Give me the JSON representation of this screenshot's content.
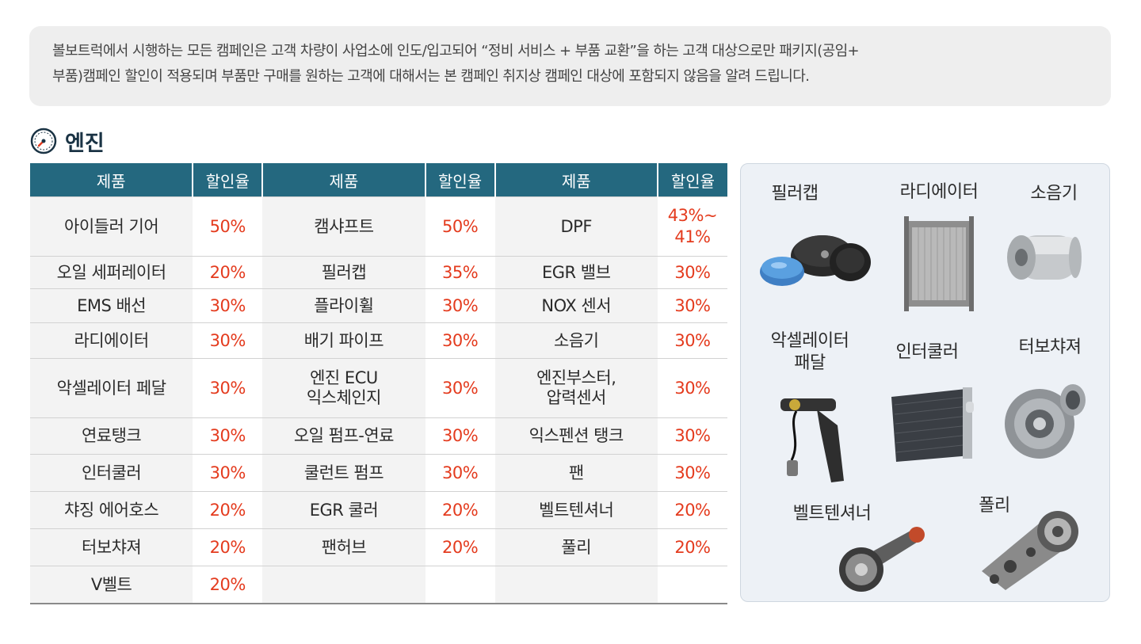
{
  "notice": {
    "line1": "볼보트럭에서 시행하는 모든 캠페인은 고객 차량이 사업소에 인도/입고되어 “정비 서비스 + 부품 교환”을 하는 고객 대상으로만 패키지(공임+",
    "line2": "부품)캠페인 할인이 적용되며 부품만 구매를 원하는 고객에 대해서는 본 캠페인 취지상 캠페인 대상에 포함되지 않음을 알려 드립니다."
  },
  "section": {
    "title": "엔진",
    "icon": "gauge-icon"
  },
  "table": {
    "headers": [
      "제품",
      "할인율",
      "제품",
      "할인율",
      "제품",
      "할인율"
    ],
    "rows": [
      [
        "아이들러 기어",
        "50%",
        "캠샤프트",
        "50%",
        "DPF",
        "43%~\n41%"
      ],
      [
        "오일 세퍼레이터",
        "20%",
        "필러캡",
        "35%",
        "EGR 밸브",
        "30%"
      ],
      [
        "EMS 배선",
        "30%",
        "플라이휠",
        "30%",
        "NOX 센서",
        "30%"
      ],
      [
        "라디에이터",
        "30%",
        "배기 파이프",
        "30%",
        "소음기",
        "30%"
      ],
      [
        "악셀레이터 페달",
        "30%",
        "엔진 ECU\n익스체인지",
        "30%",
        "엔진부스터,\n압력센서",
        "30%"
      ],
      [
        "연료탱크",
        "30%",
        "오일 펌프-연료",
        "30%",
        "익스펜션 탱크",
        "30%"
      ],
      [
        "인터쿨러",
        "30%",
        "쿨런트 펌프",
        "30%",
        "팬",
        "30%"
      ],
      [
        "챠징 에어호스",
        "20%",
        "EGR 쿨러",
        "20%",
        "벨트텐셔너",
        "20%"
      ],
      [
        "터보챠져",
        "20%",
        "팬허브",
        "20%",
        "풀리",
        "20%"
      ],
      [
        "V벨트",
        "20%",
        "",
        "",
        "",
        ""
      ]
    ]
  },
  "gallery": {
    "filler_cap": "필러캡",
    "radiator": "라디에이터",
    "muffler": "소음기",
    "accelerator_pedal": "악셀레이터\n패달",
    "intercooler": "인터쿨러",
    "turbocharger": "터보챠져",
    "belt_tensioner": "벨트텐셔너",
    "pulley": "폴리"
  },
  "colors": {
    "header_bg": "#24687f",
    "rate_text": "#e43b1e",
    "name_bg": "#f3f3f3",
    "notice_bg": "#eeeeee",
    "gallery_bg": "#edf1f6"
  }
}
